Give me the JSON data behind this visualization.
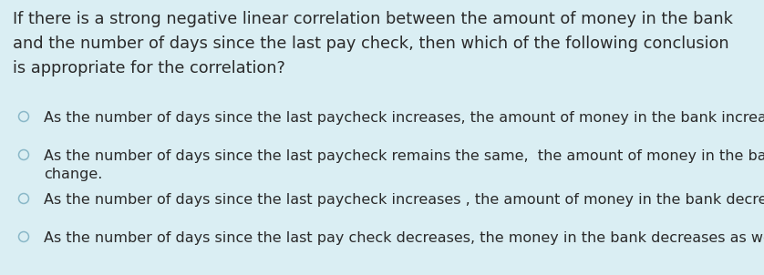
{
  "background_color": "#daeef3",
  "question_lines": [
    "If there is a strong negative linear correlation between the amount of money in the bank",
    "and the number of days since the last pay check, then which of the following conclusion",
    "is appropriate for the correlation?"
  ],
  "options": [
    "As the number of days since the last paycheck increases, the amount of money in the bank increases as well.",
    "As the number of days since the last paycheck remains the same,  the amount of money in the bank doesn’t\nchange.",
    "As the number of days since the last paycheck increases , the amount of money in the bank decreases.",
    "As the number of days since the last pay check decreases, the money in the bank decreases as well."
  ],
  "question_fontsize": 12.8,
  "option_fontsize": 11.5,
  "text_color": "#2a2a2a",
  "circle_color": "#8ab8c8",
  "fig_width": 8.38,
  "fig_height": 3.02,
  "dpi": 100
}
